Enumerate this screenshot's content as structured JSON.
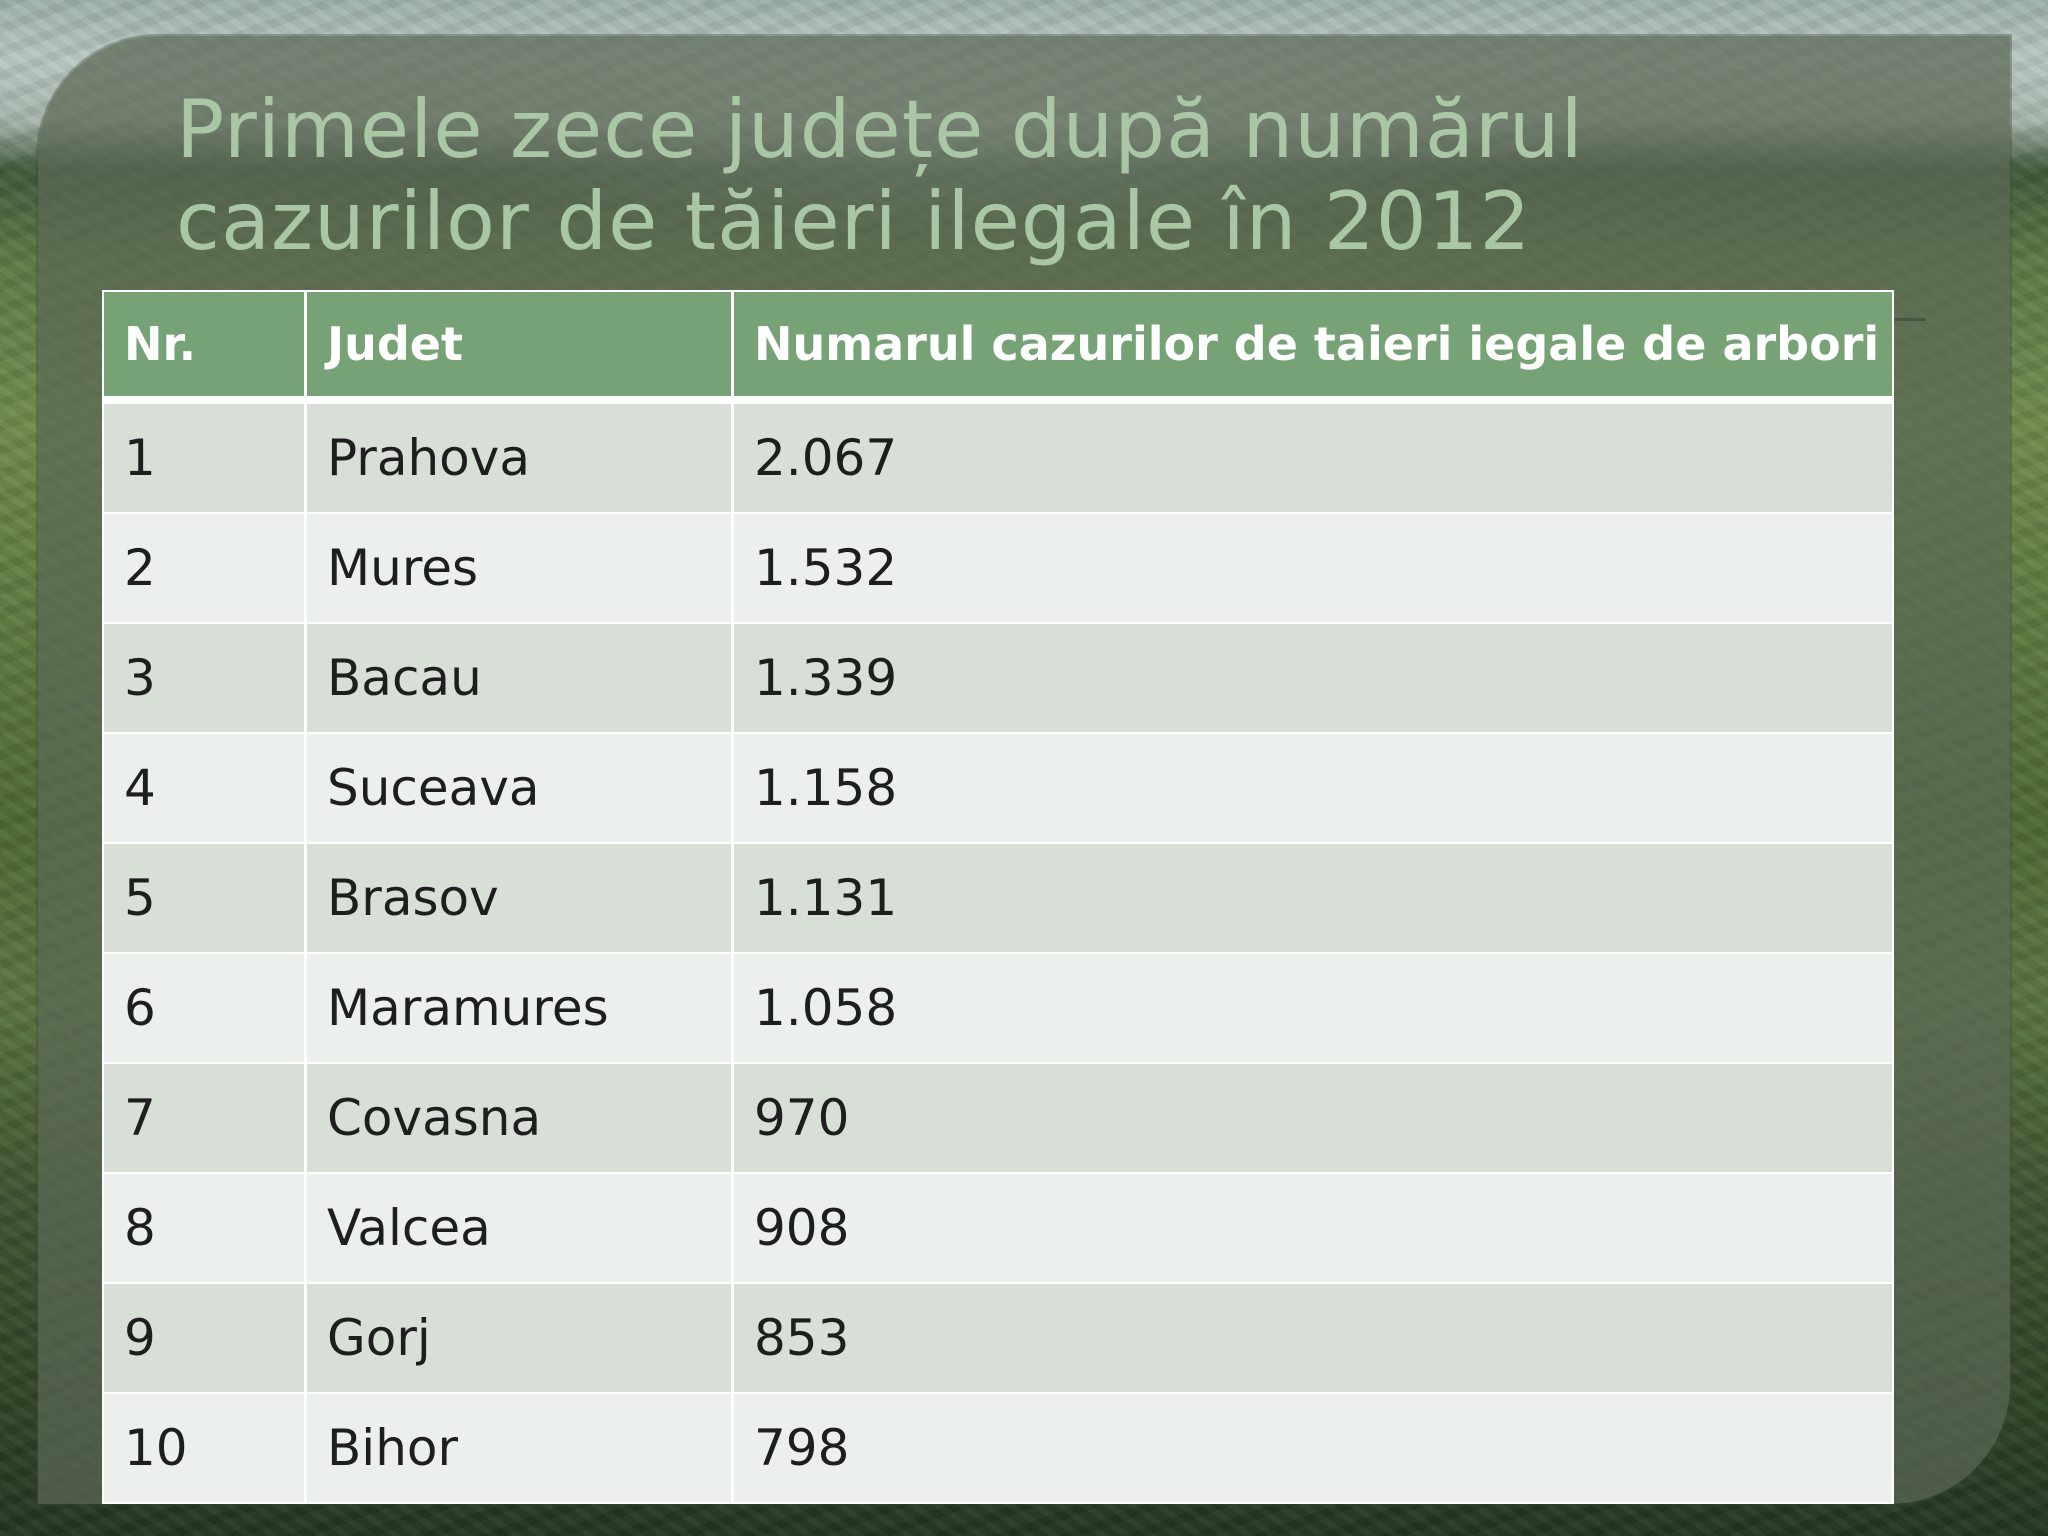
{
  "slide": {
    "title_line1": "Primele zece județe după numărul",
    "title_line2": "cazurilor de tăieri ilegale în 2012",
    "accent_color": "#76a275",
    "title_color": "#a9c7a4"
  },
  "table": {
    "headers": [
      "Nr.",
      "Judet",
      "Numarul cazurilor de taieri iegale de arbori"
    ],
    "rows": [
      {
        "nr": "1",
        "judet": "Prahova",
        "cazuri": "2.067"
      },
      {
        "nr": "2",
        "judet": "Mures",
        "cazuri": "1.532"
      },
      {
        "nr": "3",
        "judet": "Bacau",
        "cazuri": "1.339"
      },
      {
        "nr": "4",
        "judet": "Suceava",
        "cazuri": "1.158"
      },
      {
        "nr": "5",
        "judet": "Brasov",
        "cazuri": "1.131"
      },
      {
        "nr": "6",
        "judet": "Maramures",
        "cazuri": "1.058"
      },
      {
        "nr": "7",
        "judet": "Covasna",
        "cazuri": "970"
      },
      {
        "nr": "8",
        "judet": "Valcea",
        "cazuri": "908"
      },
      {
        "nr": "9",
        "judet": "Gorj",
        "cazuri": "853"
      },
      {
        "nr": "10",
        "judet": "Bihor",
        "cazuri": "798"
      }
    ]
  }
}
